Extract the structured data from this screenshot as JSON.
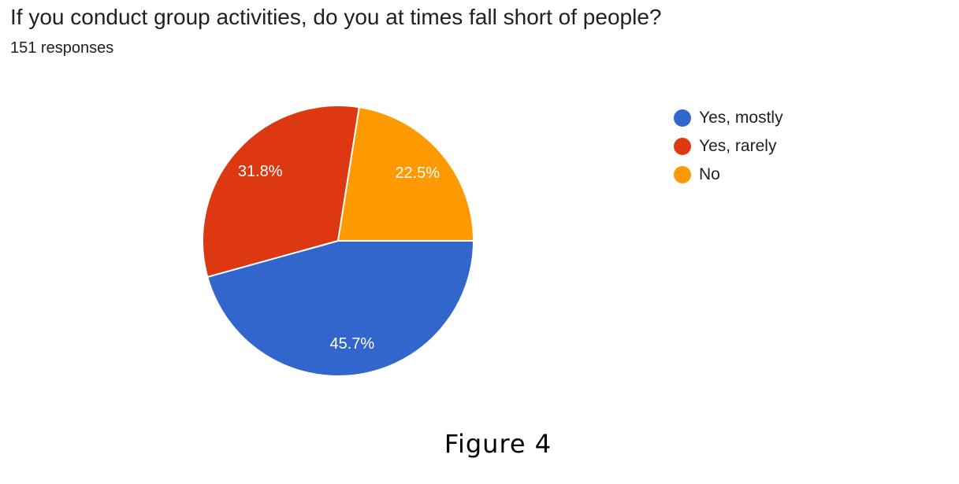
{
  "question": {
    "title": "If you conduct group activities, do you at times fall short of people?",
    "responses": "151 responses"
  },
  "chart_data": {
    "type": "pie",
    "title": "If you conduct group activities, do you at times fall short of people?",
    "total_responses": 151,
    "slices": [
      {
        "label": "Yes, mostly",
        "value": 45.7,
        "display": "45.7%",
        "color": "#3366cc"
      },
      {
        "label": "Yes, rarely",
        "value": 31.8,
        "display": "31.8%",
        "color": "#dc3912"
      },
      {
        "label": "No",
        "value": 22.5,
        "display": "22.5%",
        "color": "#ff9900"
      }
    ],
    "legend_position": "right"
  },
  "caption": "Figure 4"
}
